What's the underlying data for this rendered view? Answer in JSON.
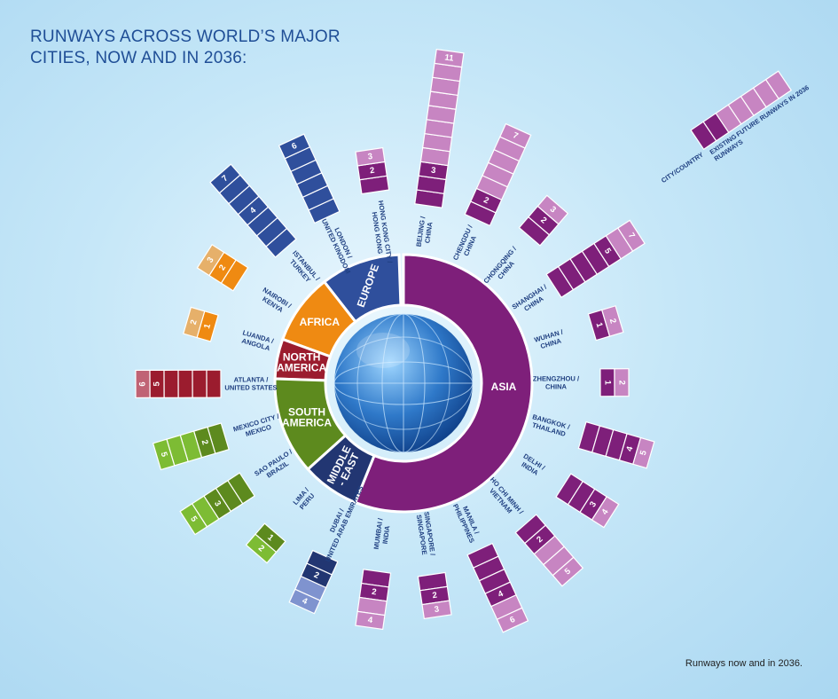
{
  "chart_data": {
    "type": "radial-bar",
    "title": "RUNWAYS ACROSS WORLD’S MAJOR CITIES, NOW AND IN 2036:",
    "footnote": "Runways now and in 2036.",
    "colors": {
      "ASIA": [
        "#7e1f7a",
        "#c785c2"
      ],
      "EUROPE": [
        "#2f4f9c",
        "#2f4f9c"
      ],
      "AFRICA": [
        "#ef8a12",
        "#e6b06a"
      ],
      "NORTH AMERICA": [
        "#9b1c2e",
        "#c06375"
      ],
      "SOUTH AMERICA": [
        "#5d8a1e",
        "#7dbc34"
      ],
      "MIDDLE - EAST": [
        "#223672",
        "#7f93cf"
      ]
    },
    "legend": {
      "city": "CITY/COUNTRY",
      "existing": "EXISTING RUNWAYS",
      "future": "FUTURE RUNWAYS IN 2036"
    },
    "regions": [
      {
        "name": "ASIA",
        "label": [
          "ASIA"
        ]
      },
      {
        "name": "EUROPE",
        "label": [
          "EUROPE"
        ]
      },
      {
        "name": "AFRICA",
        "label": [
          "AFRICA"
        ]
      },
      {
        "name": "NORTH AMERICA",
        "label": [
          "NORTH",
          "AMERICA"
        ]
      },
      {
        "name": "SOUTH AMERICA",
        "label": [
          "SOUTH",
          "AMERICA"
        ]
      },
      {
        "name": "MIDDLE - EAST",
        "label": [
          "MIDDLE",
          "- EAST"
        ]
      }
    ],
    "cities": [
      {
        "city": "BEIJING / CHINA",
        "region": "ASIA",
        "existing": 3,
        "future": 11
      },
      {
        "city": "CHENGDU / CHINA",
        "region": "ASIA",
        "existing": 2,
        "future": 7
      },
      {
        "city": "CHONGQING / CHINA",
        "region": "ASIA",
        "existing": 2,
        "future": 3
      },
      {
        "city": "SHANGHAI / CHINA",
        "region": "ASIA",
        "existing": 5,
        "future": 7
      },
      {
        "city": "WUHAN / CHINA",
        "region": "ASIA",
        "existing": 1,
        "future": 2
      },
      {
        "city": "ZHENGZHOU / CHINA",
        "region": "ASIA",
        "existing": 1,
        "future": 2
      },
      {
        "city": "BANGKOK / THAILAND",
        "region": "ASIA",
        "existing": 4,
        "future": 5
      },
      {
        "city": "DELHI / INDIA",
        "region": "ASIA",
        "existing": 3,
        "future": 4
      },
      {
        "city": "HO CHI MINH / VIETNAM",
        "region": "ASIA",
        "existing": 2,
        "future": 5
      },
      {
        "city": "MANILA / PHILIPPINES",
        "region": "ASIA",
        "existing": 4,
        "future": 6
      },
      {
        "city": "SINGAPORE / SINGAPORE",
        "region": "ASIA",
        "existing": 2,
        "future": 3
      },
      {
        "city": "MUMBAI / INDIA",
        "region": "ASIA",
        "existing": 2,
        "future": 4
      },
      {
        "city": "DUBAI / UNITED ARAB EMIRATES",
        "region": "MIDDLE - EAST",
        "existing": 2,
        "future": 4
      },
      {
        "city": "LIMA / PERU",
        "region": "SOUTH AMERICA",
        "existing": 1,
        "future": 2
      },
      {
        "city": "SAO PAULO / BRAZIL",
        "region": "SOUTH AMERICA",
        "existing": 3,
        "future": 5
      },
      {
        "city": "MEXICO CITY / MEXICO",
        "region": "SOUTH AMERICA",
        "existing": 2,
        "future": 5
      },
      {
        "city": "ATLANTA / UNITED STATES",
        "region": "NORTH AMERICA",
        "existing": 5,
        "future": 6
      },
      {
        "city": "LUANDA / ANGOLA",
        "region": "AFRICA",
        "existing": 1,
        "future": 2
      },
      {
        "city": "NAIROBI / KENYA",
        "region": "AFRICA",
        "existing": 2,
        "future": 3
      },
      {
        "city": "ISTANBUL / TURKEY",
        "region": "EUROPE",
        "existing": 4,
        "future": 7
      },
      {
        "city": "LONDON / UNITED KINGDOM",
        "region": "EUROPE",
        "existing": 6,
        "future": 6
      },
      {
        "city": "HONG KONG CITY / HONG KONG",
        "region": "ASIA",
        "existing": 2,
        "future": 3
      }
    ]
  }
}
